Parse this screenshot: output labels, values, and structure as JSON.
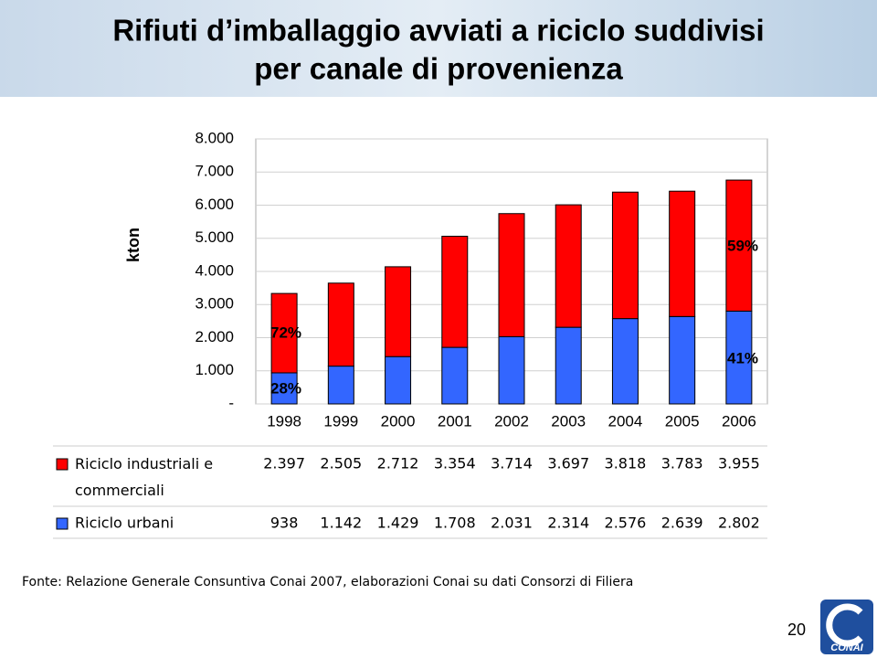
{
  "chart_data": {
    "type": "bar",
    "stacked": true,
    "title": [
      "Rifiuti d’imballaggio avviati a riciclo suddivisi",
      "per canale di provenienza"
    ],
    "y_label": "kton",
    "categories": [
      "1998",
      "1999",
      "2000",
      "2001",
      "2002",
      "2003",
      "2004",
      "2005",
      "2006"
    ],
    "series": [
      {
        "name": "Riciclo industriali e commerciali",
        "color": "#ff0000",
        "values": [
          2397,
          2505,
          2712,
          3354,
          3714,
          3697,
          3818,
          3783,
          3955
        ],
        "value_labels": [
          "2.397",
          "2.505",
          "2.712",
          "3.354",
          "3.714",
          "3.697",
          "3.818",
          "3.783",
          "3.955"
        ]
      },
      {
        "name": "Riciclo urbani",
        "color": "#3366ff",
        "values": [
          938,
          1142,
          1429,
          1708,
          2031,
          2314,
          2576,
          2639,
          2802
        ],
        "value_labels": [
          "938",
          "1.142",
          "1.429",
          "1.708",
          "2.031",
          "2.314",
          "2.576",
          "2.639",
          "2.802"
        ]
      }
    ],
    "ylim": [
      0,
      8000
    ],
    "yticks": [
      {
        "value": 0,
        "label": "-"
      },
      {
        "value": 1000,
        "label": "1.000"
      },
      {
        "value": 2000,
        "label": "2.000"
      },
      {
        "value": 3000,
        "label": "3.000"
      },
      {
        "value": 4000,
        "label": "4.000"
      },
      {
        "value": 5000,
        "label": "5.000"
      },
      {
        "value": 6000,
        "label": "6.000"
      },
      {
        "value": 7000,
        "label": "7.000"
      },
      {
        "value": 8000,
        "label": "8.000"
      }
    ],
    "grid": true,
    "annotations": [
      "72%",
      "28%",
      "59%",
      "41%"
    ],
    "source": "Fonte: Relazione Generale Consuntiva Conai 2007, elaborazioni Conai su dati Consorzi di Filiera",
    "page_number": "20",
    "logo": "CONAI"
  }
}
